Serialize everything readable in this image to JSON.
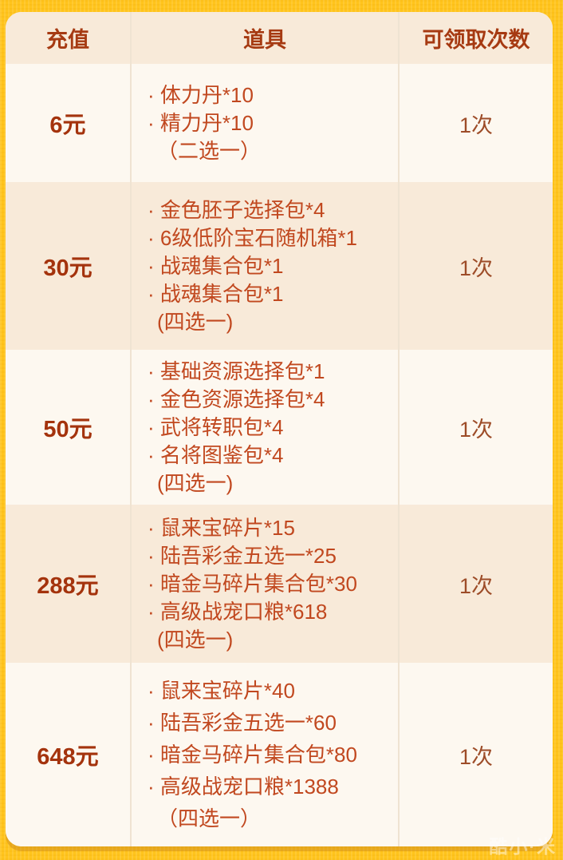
{
  "table": {
    "headers": [
      "充值",
      "道具",
      "可领取次数"
    ],
    "rows": [
      {
        "recharge": "6元",
        "items": [
          "· 体力丹*10",
          "· 精力丹*10"
        ],
        "note": "（二选一）",
        "claims": "1次"
      },
      {
        "recharge": "30元",
        "items": [
          "· 金色胚子选择包*4",
          "· 6级低阶宝石随机箱*1",
          "· 战魂集合包*1",
          "· 战魂集合包*1"
        ],
        "note": "(四选一)",
        "claims": "1次"
      },
      {
        "recharge": "50元",
        "items": [
          "· 基础资源选择包*1",
          "· 金色资源选择包*4",
          "· 武将转职包*4",
          "· 名将图鉴包*4"
        ],
        "note": "(四选一)",
        "claims": "1次"
      },
      {
        "recharge": "288元",
        "items": [
          "· 鼠来宝碎片*15",
          "· 陆吾彩金五选一*25",
          "· 暗金马碎片集合包*30",
          "· 高级战宠口粮*618"
        ],
        "note": "(四选一)",
        "claims": "1次"
      },
      {
        "recharge": "648元",
        "items": [
          "· 鼠来宝碎片*40",
          "· 陆吾彩金五选一*60",
          "· 暗金马碎片集合包*80",
          "· 高级战宠口粮*1388"
        ],
        "note": "（四选一）",
        "claims": "1次"
      }
    ]
  },
  "watermark": {
    "text": "酷小·米"
  },
  "colors": {
    "background": "#FFC41C",
    "card": "#FDF8F0",
    "band": "#F8EAD9",
    "header_text": "#A63A12",
    "price_text": "#A4330D",
    "item_text": "#C1481F",
    "count_text": "#9D4C28",
    "separator": "#EFE3D2"
  }
}
